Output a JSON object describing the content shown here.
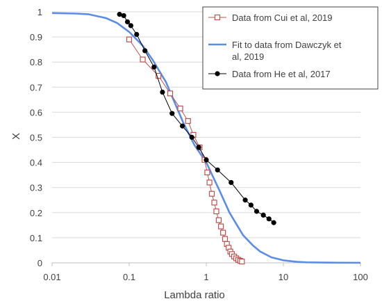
{
  "chart_data": {
    "type": "scatter",
    "xscale": "log",
    "xlim": [
      0.01,
      100
    ],
    "ylim": [
      0,
      1
    ],
    "xlabel": "Lambda ratio",
    "ylabel": "X",
    "xticks": [
      "0.01",
      "0.1",
      "1",
      "10",
      "100"
    ],
    "yticks": [
      "0",
      "0.1",
      "0.2",
      "0.3",
      "0.4",
      "0.5",
      "0.6",
      "0.7",
      "0.8",
      "0.9",
      "1"
    ],
    "grid": "horizontal",
    "legend_position": "top-right",
    "series": [
      {
        "name": "Data from Cui et al, 2019",
        "color": "#c0504d",
        "marker": "open-square",
        "line": true,
        "x": [
          0.1,
          0.15,
          0.24,
          0.34,
          0.46,
          0.58,
          0.68,
          0.82,
          0.95,
          1.03,
          1.1,
          1.18,
          1.27,
          1.35,
          1.45,
          1.55,
          1.65,
          1.75,
          1.85,
          1.95,
          2.05,
          2.15,
          2.3,
          2.45,
          2.6,
          2.75,
          2.9
        ],
        "y": [
          0.89,
          0.81,
          0.745,
          0.675,
          0.615,
          0.565,
          0.51,
          0.46,
          0.41,
          0.36,
          0.32,
          0.275,
          0.24,
          0.205,
          0.17,
          0.145,
          0.12,
          0.095,
          0.075,
          0.06,
          0.045,
          0.035,
          0.025,
          0.018,
          0.012,
          0.008,
          0.005
        ]
      },
      {
        "name": "Fit to data from Dawczyk et al, 2019",
        "color": "#5b8de8",
        "marker": "none",
        "line": true,
        "x": [
          0.01,
          0.02,
          0.03,
          0.05,
          0.07,
          0.1,
          0.15,
          0.2,
          0.3,
          0.4,
          0.5,
          0.7,
          1,
          1.5,
          2,
          3,
          4,
          5,
          7,
          10,
          15,
          20,
          30,
          50,
          100
        ],
        "y": [
          0.995,
          0.993,
          0.99,
          0.975,
          0.955,
          0.92,
          0.865,
          0.81,
          0.72,
          0.63,
          0.56,
          0.47,
          0.4,
          0.285,
          0.2,
          0.11,
          0.07,
          0.045,
          0.022,
          0.01,
          0.004,
          0.002,
          0.001,
          0.0005,
          0.0002
        ]
      },
      {
        "name": "Data from He et al, 2017",
        "color": "#000000",
        "marker": "filled-circle",
        "line": true,
        "x": [
          0.075,
          0.085,
          0.095,
          0.105,
          0.125,
          0.16,
          0.21,
          0.27,
          0.36,
          0.49,
          0.65,
          0.8,
          1.0,
          1.4,
          2.1,
          3.2,
          3.8,
          4.5,
          5.5,
          6.5,
          7.5
        ],
        "y": [
          0.99,
          0.985,
          0.96,
          0.945,
          0.91,
          0.845,
          0.78,
          0.68,
          0.595,
          0.545,
          0.5,
          0.46,
          0.41,
          0.37,
          0.32,
          0.25,
          0.23,
          0.205,
          0.19,
          0.175,
          0.16
        ]
      }
    ]
  }
}
